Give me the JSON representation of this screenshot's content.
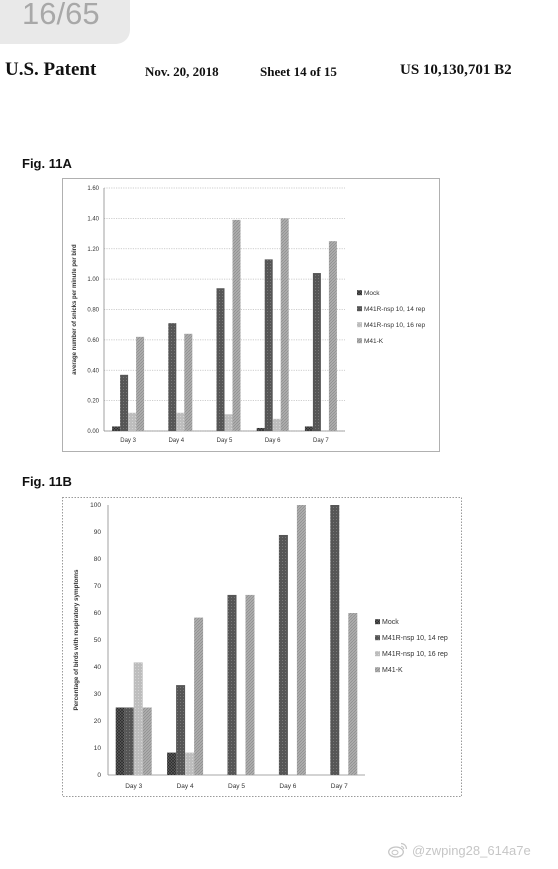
{
  "page_counter": "16/65",
  "header": {
    "title": "U.S. Patent",
    "date": "Nov. 20, 2018",
    "sheet": "Sheet 14 of 15",
    "number": "US 10,130,701 B2"
  },
  "watermark": {
    "icon": "weibo-logo-icon",
    "text": "@zwping28_614a7e",
    "color": "#c6c6c6"
  },
  "chart_data": [
    {
      "figure_label": "Fig. 11A",
      "type": "bar",
      "categories": [
        "Day 3",
        "Day 4",
        "Day 5",
        "Day 6",
        "Day 7"
      ],
      "ylabel": "average number of snicks per minute per bird",
      "ylim": [
        0,
        1.6
      ],
      "yticks": [
        "0.00",
        "0.20",
        "0.40",
        "0.60",
        "0.80",
        "1.00",
        "1.20",
        "1.40",
        "1.60"
      ],
      "grid": true,
      "legend_position": "right",
      "series": [
        {
          "name": "Mock",
          "color": "#5c5c5c",
          "values": [
            0.03,
            0.0,
            0.0,
            0.02,
            0.03
          ]
        },
        {
          "name": "M41R-nsp 10, 14 rep",
          "color": "#565656",
          "values": [
            0.37,
            0.71,
            0.94,
            1.13,
            1.04
          ]
        },
        {
          "name": "M41R-nsp 10, 16 rep",
          "color": "#bdbdbd",
          "values": [
            0.12,
            0.12,
            0.11,
            0.08,
            0.0
          ]
        },
        {
          "name": "M41-K",
          "color": "#adadad",
          "values": [
            0.62,
            0.64,
            1.39,
            1.4,
            1.25
          ]
        }
      ]
    },
    {
      "figure_label": "Fig. 11B",
      "type": "bar",
      "categories": [
        "Day 3",
        "Day 4",
        "Day 5",
        "Day 6",
        "Day 7"
      ],
      "ylabel": "Percentage of birds with respiratory symptoms",
      "ylim": [
        0,
        100
      ],
      "yticks": [
        "0",
        "10",
        "20",
        "30",
        "40",
        "50",
        "60",
        "70",
        "80",
        "90",
        "100"
      ],
      "grid": false,
      "legend_position": "right",
      "series": [
        {
          "name": "Mock",
          "color": "#5c5c5c",
          "values": [
            25,
            8.3,
            0,
            0,
            0
          ]
        },
        {
          "name": "M41R-nsp 10, 14 rep",
          "color": "#565656",
          "values": [
            25,
            33.3,
            66.7,
            88.9,
            100
          ]
        },
        {
          "name": "M41R-nsp 10, 16 rep",
          "color": "#bdbdbd",
          "values": [
            41.7,
            8.3,
            0,
            0,
            0
          ]
        },
        {
          "name": "M41-K",
          "color": "#adadad",
          "values": [
            25,
            58.3,
            66.7,
            100,
            60
          ]
        }
      ]
    }
  ]
}
